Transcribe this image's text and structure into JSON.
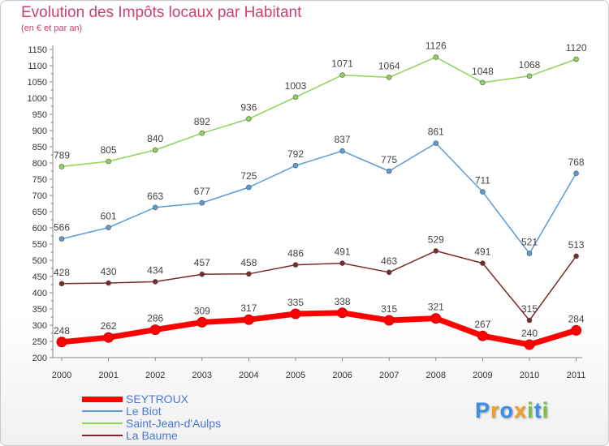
{
  "chart_data": {
    "type": "line",
    "title": "Evolution des Impôts locaux par Habitant",
    "subtitle": "(en € et par an)",
    "xlabel": "",
    "ylabel": "",
    "categories": [
      "2000",
      "2001",
      "2002",
      "2003",
      "2004",
      "2005",
      "2006",
      "2007",
      "2008",
      "2009",
      "2010",
      "2011"
    ],
    "ylim": [
      200,
      1150
    ],
    "yticks": [
      200,
      250,
      300,
      350,
      400,
      450,
      500,
      550,
      600,
      650,
      700,
      750,
      800,
      850,
      900,
      950,
      1000,
      1050,
      1100,
      1150
    ],
    "grid": false,
    "legend_position": "bottom-left",
    "series": [
      {
        "name": "SEYTROUX",
        "color": "#ff0000",
        "values": [
          248,
          262,
          286,
          309,
          317,
          335,
          338,
          315,
          321,
          267,
          240,
          284
        ]
      },
      {
        "name": "Le Biot",
        "color": "#5b9bd5",
        "values": [
          566,
          601,
          663,
          677,
          725,
          792,
          837,
          775,
          861,
          711,
          521,
          768
        ]
      },
      {
        "name": "Saint-Jean-d'Aulps",
        "color": "#8fd45a",
        "values": [
          789,
          805,
          840,
          892,
          936,
          1003,
          1071,
          1064,
          1126,
          1048,
          1068,
          1120
        ]
      },
      {
        "name": "La Baume",
        "color": "#7a2a2a",
        "values": [
          428,
          430,
          434,
          457,
          458,
          486,
          491,
          463,
          529,
          491,
          315,
          513
        ]
      }
    ]
  },
  "logo": {
    "letters": [
      {
        "ch": "P",
        "color": "#3a8ee6"
      },
      {
        "ch": "r",
        "color": "#f0a020"
      },
      {
        "ch": "o",
        "color": "#3a8ee6"
      },
      {
        "ch": "x",
        "color": "#f0a020"
      },
      {
        "ch": "i",
        "color": "#7ac043"
      },
      {
        "ch": "t",
        "color": "#3a8ee6"
      },
      {
        "ch": "i",
        "color": "#7ac043"
      }
    ]
  }
}
